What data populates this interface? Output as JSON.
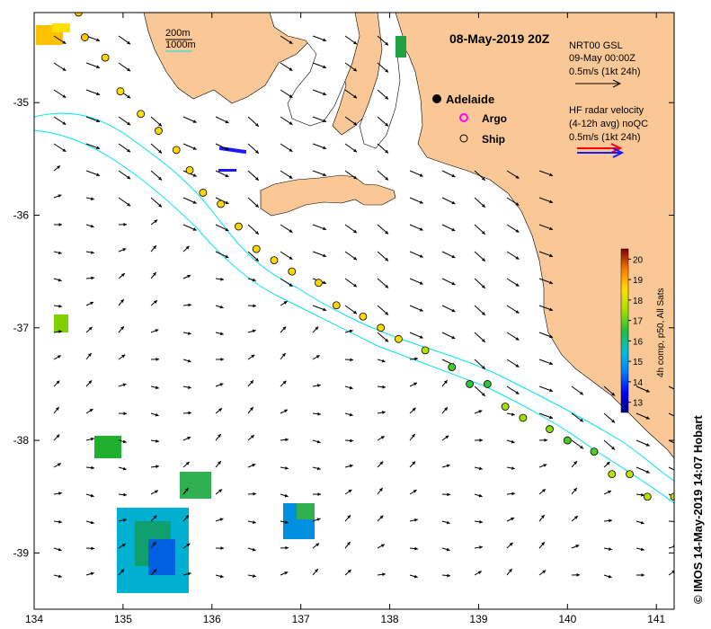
{
  "title": "08-May-2019 20Z",
  "scale_legend": {
    "contour_1": "200m",
    "contour_2": "1000m"
  },
  "model_legend": {
    "line1": "NRT00 GSL",
    "line2": "09-May 00:00Z",
    "line3": "0.5m/s (1kt 24h)"
  },
  "radar_legend": {
    "line1": "HF radar velocity",
    "line2": "(4-12h avg) noQC",
    "line3": "0.5m/s (1kt 24h)"
  },
  "markers": {
    "city": "Adelaide",
    "argo": "Argo",
    "ship": "Ship"
  },
  "colorbar": {
    "label": "4h comp, p50, All Sats",
    "min": 12.5,
    "max": 20.5,
    "ticks": [
      "13",
      "14",
      "15",
      "16",
      "17",
      "18",
      "19",
      "20"
    ]
  },
  "axes": {
    "x_ticks": [
      "134",
      "135",
      "136",
      "137",
      "138",
      "139",
      "140",
      "141"
    ],
    "y_ticks": [
      "-35",
      "-36",
      "-37",
      "-38",
      "-39"
    ]
  },
  "credit": "© IMOS 14-May-2019 14:07 Hobart",
  "colors": {
    "land": "#fac896",
    "contour_line": "#00e5ee",
    "radar_arrow_red": "#ff0000",
    "radar_arrow_blue": "#1a1aff"
  },
  "chart_data": {
    "type": "scatter",
    "xlim": [
      134,
      141.2
    ],
    "ylim": [
      -39.5,
      -34.2
    ],
    "series": [
      {
        "name": "Ship",
        "points": [
          [
            134.5,
            -34.2,
            18.8
          ],
          [
            134.57,
            -34.42,
            18.8
          ],
          [
            134.8,
            -34.6,
            18.6
          ],
          [
            134.97,
            -34.9,
            18.5
          ],
          [
            135.2,
            -35.1,
            18.5
          ],
          [
            135.4,
            -35.25,
            18.6
          ],
          [
            135.6,
            -35.42,
            18.6
          ],
          [
            135.75,
            -35.6,
            18.6
          ],
          [
            135.9,
            -35.8,
            18.6
          ],
          [
            136.1,
            -35.9,
            18.6
          ],
          [
            136.3,
            -36.1,
            18.6
          ],
          [
            136.5,
            -36.3,
            18.6
          ],
          [
            136.7,
            -36.4,
            18.6
          ],
          [
            136.9,
            -36.5,
            18.6
          ],
          [
            137.2,
            -36.6,
            18.6
          ],
          [
            137.4,
            -36.8,
            18.6
          ],
          [
            137.7,
            -36.9,
            18.6
          ],
          [
            137.9,
            -37.0,
            18.6
          ],
          [
            138.1,
            -37.1,
            18.3
          ],
          [
            138.4,
            -37.2,
            17.7
          ],
          [
            138.7,
            -37.35,
            16.8
          ],
          [
            138.9,
            -37.5,
            16.6
          ],
          [
            139.1,
            -37.5,
            16.6
          ],
          [
            139.3,
            -37.7,
            17.5
          ],
          [
            139.5,
            -37.8,
            17.5
          ],
          [
            139.8,
            -37.9,
            17.3
          ],
          [
            140.0,
            -38.0,
            16.8
          ],
          [
            140.3,
            -38.1,
            16.9
          ],
          [
            140.5,
            -38.3,
            17.7
          ],
          [
            140.7,
            -38.3,
            17.8
          ],
          [
            140.9,
            -38.5,
            17.8
          ],
          [
            141.2,
            -38.5,
            17.8
          ]
        ]
      }
    ]
  }
}
